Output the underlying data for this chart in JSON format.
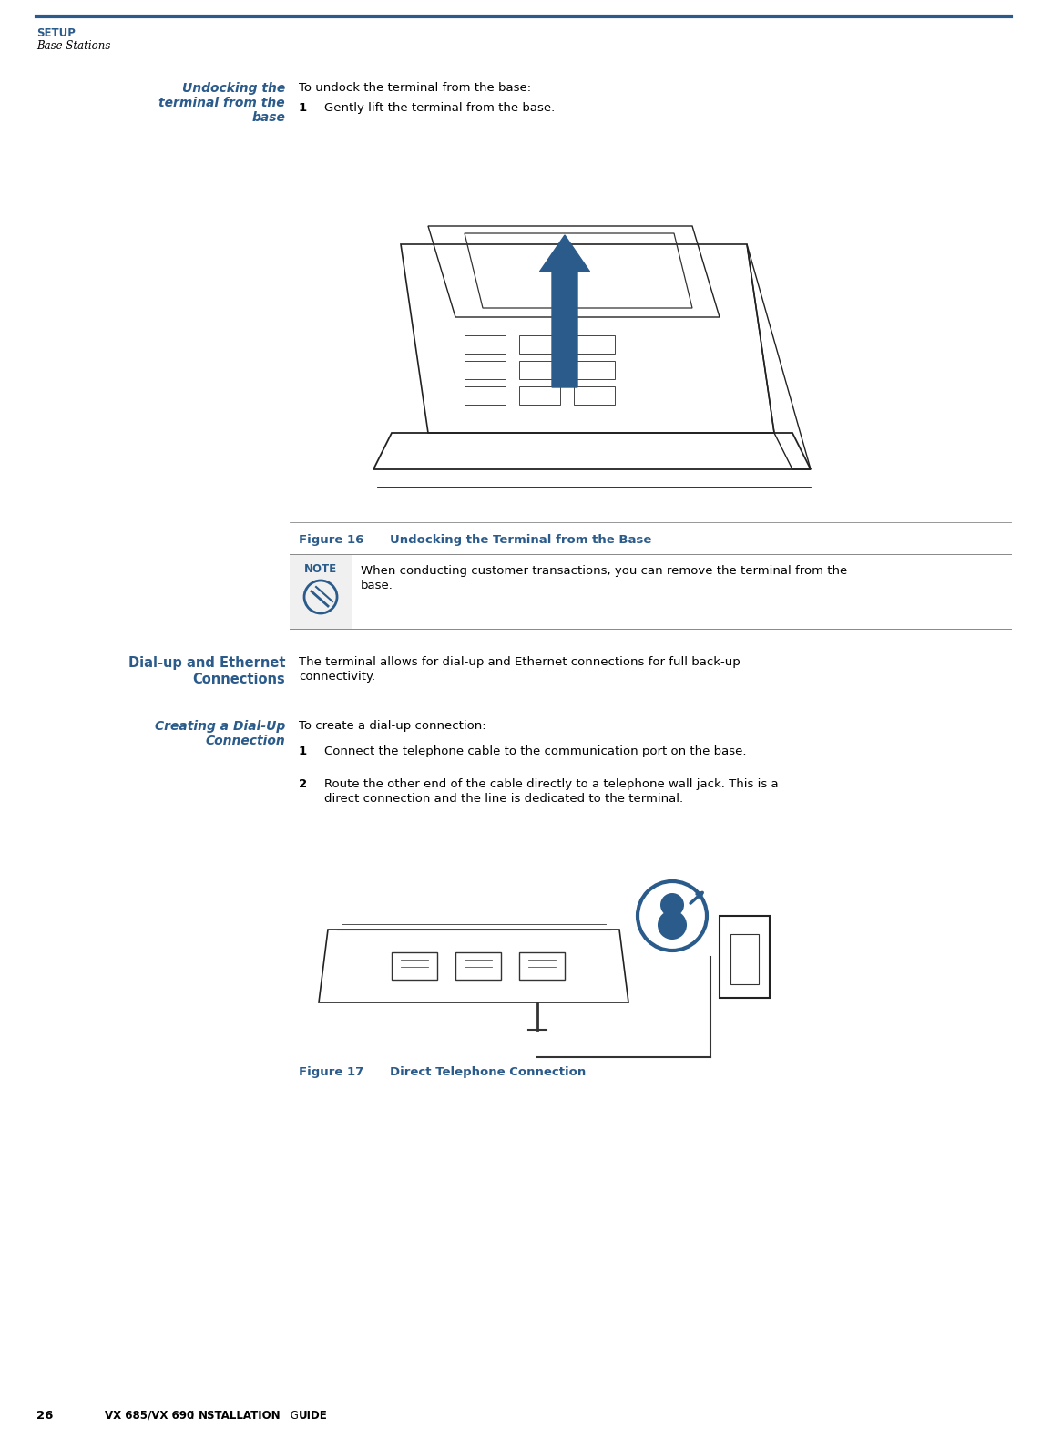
{
  "page_width": 11.44,
  "page_height": 15.79,
  "bg_color": "#ffffff",
  "header_bar_color": "#2a5b8b",
  "header_text_setup": "SETUP",
  "header_text_sub": "Base Stations",
  "header_setup_color": "#2a5b8b",
  "header_sub_color": "#000000",
  "sec1_heading_line1": "Undocking the",
  "sec1_heading_line2": "terminal from the",
  "sec1_heading_line3": "base",
  "sec1_heading_color": "#2a5b8b",
  "sec1_intro": "To undock the terminal from the base:",
  "sec1_step1_num": "1",
  "sec1_step1_text": "Gently lift the terminal from the base.",
  "fig16_label": "Figure 16",
  "fig16_caption": "Undocking the Terminal from the Base",
  "fig_caption_color": "#2a5b8b",
  "note_title": "NOTE",
  "note_title_color": "#2a5b8b",
  "note_text_line1": "When conducting customer transactions, you can remove the terminal from the",
  "note_text_line2": "base.",
  "sec2_heading_line1": "Dial-up and Ethernet",
  "sec2_heading_line2": "Connections",
  "sec2_heading_color": "#2a5b8b",
  "sec2_intro_line1": "The terminal allows for dial-up and Ethernet connections for full back-up",
  "sec2_intro_line2": "connectivity.",
  "sec3_heading_line1": "Creating a Dial-Up",
  "sec3_heading_line2": "Connection",
  "sec3_heading_color": "#2a5b8b",
  "sec3_intro": "To create a dial-up connection:",
  "sec3_step1_num": "1",
  "sec3_step1_text": "Connect the telephone cable to the communication port on the base.",
  "sec3_step2_num": "2",
  "sec3_step2_line1": "Route the other end of the cable directly to a telephone wall jack. This is a",
  "sec3_step2_line2": "direct connection and the line is dedicated to the terminal.",
  "fig17_label": "Figure 17",
  "fig17_caption": "Direct Telephone Connection",
  "footer_page": "26",
  "footer_text": "VX 685/VX 690 I",
  "footer_text2": "NSTALLATION",
  "footer_text3": " G",
  "footer_text4": "UIDE",
  "blue_color": "#2a5b8b",
  "line_color": "#2a5b8b",
  "gray_line_color": "#888888",
  "arrow_color": "#2a5b8b",
  "text_color": "#000000",
  "lmargin": 0.035,
  "col_split": 0.278,
  "rmargin": 0.97
}
